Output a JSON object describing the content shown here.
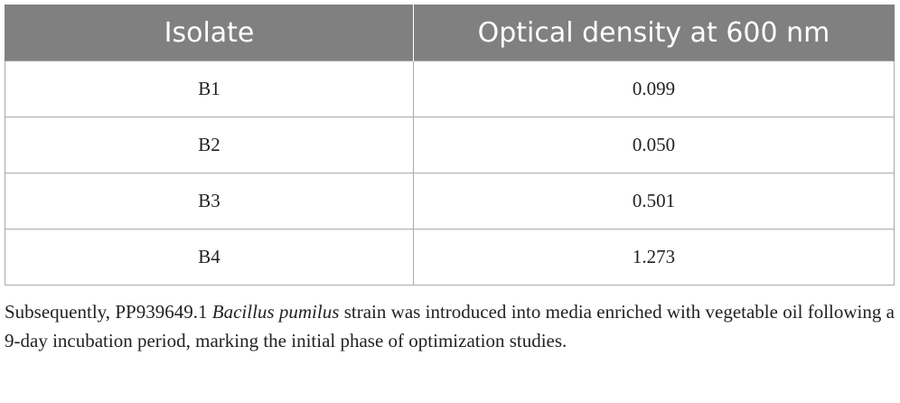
{
  "table": {
    "header": [
      "Isolate",
      "Optical density at 600 nm"
    ],
    "rows": [
      [
        "B1",
        "0.099"
      ],
      [
        "B2",
        "0.050"
      ],
      [
        "B3",
        "0.501"
      ],
      [
        "B4",
        "1.273"
      ]
    ]
  },
  "paragraph": [
    "Subsequently, PP939649.1 ",
    "Bacillus pumilus",
    " strain was introduced into media enriched with vegetable oil following a 9-day incubation period, marking the initial phase of optimization studies."
  ]
}
